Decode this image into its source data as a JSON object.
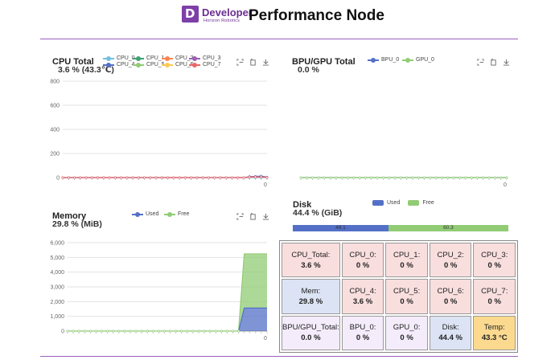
{
  "header": {
    "brand_main": "Developer",
    "brand_sub": "Horizon Robotics",
    "logo_letter": "D",
    "title": "Performance Node"
  },
  "colors": {
    "accent": "#7d3fa8",
    "rule": "#9b5fc0",
    "used": "#5470c6",
    "free": "#91cc75",
    "cpu_cell": "#f9dede",
    "mem_cell": "#dbe3f4",
    "bpu_cell": "#f4ecfa",
    "temp_cell": "#fbd98f"
  },
  "cpu_panel": {
    "title": "CPU Total",
    "value": "3.6 % (43.3℃)",
    "legend": [
      {
        "name": "CPU_0",
        "color": "#73c0de"
      },
      {
        "name": "CPU_1",
        "color": "#3ba272"
      },
      {
        "name": "CPU_2",
        "color": "#fc8452"
      },
      {
        "name": "CPU_3",
        "color": "#9a60b4"
      },
      {
        "name": "CPU_4",
        "color": "#5470c6"
      },
      {
        "name": "CPU_5",
        "color": "#91cc75"
      },
      {
        "name": "CPU_6",
        "color": "#fac858"
      },
      {
        "name": "CPU_7",
        "color": "#ee6666"
      }
    ],
    "tools": [
      "zoom-icon",
      "restore-icon",
      "download-icon"
    ]
  },
  "bpu_panel": {
    "title": "BPU/GPU Total",
    "value": "0.0 %",
    "legend": [
      {
        "name": "BPU_0",
        "color": "#5470c6"
      },
      {
        "name": "GPU_0",
        "color": "#91cc75"
      }
    ],
    "tools": [
      "zoom-icon",
      "restore-icon",
      "download-icon"
    ]
  },
  "mem_panel": {
    "title": "Memory",
    "value": "29.8 % (MiB)",
    "legend": [
      {
        "name": "Used",
        "color": "#5470c6"
      },
      {
        "name": "Free",
        "color": "#91cc75"
      }
    ],
    "tools": [
      "zoom-icon",
      "restore-icon",
      "download-icon"
    ]
  },
  "disk_panel": {
    "title": "Disk",
    "value": "44.4 % (GiB)",
    "legend": [
      {
        "name": "Used",
        "color": "#5470c6"
      },
      {
        "name": "Free",
        "color": "#91cc75"
      }
    ],
    "used": 48.1,
    "free": 60.3,
    "used_label": "48.1",
    "free_label": "60.3"
  },
  "chart_data": [
    {
      "type": "line",
      "name": "cpu",
      "ylim": [
        0,
        800
      ],
      "yticks": [
        "0",
        "200",
        "400",
        "600",
        "800"
      ],
      "xtick_last": "0",
      "points": 36,
      "series": [
        {
          "name": "CPU_0",
          "last_values": [
            0,
            0,
            0,
            0,
            0,
            0
          ]
        },
        {
          "name": "CPU_4",
          "last_values": [
            0,
            0,
            8,
            10,
            12,
            4
          ]
        },
        {
          "name": "CPU_7",
          "last_values": [
            0,
            0,
            4,
            6,
            4,
            2
          ]
        }
      ]
    },
    {
      "type": "line",
      "name": "bpu",
      "xtick_last": "0",
      "points": 36,
      "series": [
        {
          "name": "BPU_0",
          "value": 0
        },
        {
          "name": "GPU_0",
          "value": 0
        }
      ]
    },
    {
      "type": "area",
      "name": "memory",
      "ylim": [
        0,
        6000
      ],
      "yticks": [
        "0",
        "1,000",
        "2,000",
        "3,000",
        "4,000",
        "5,000",
        "6,000"
      ],
      "xtick_last": "0",
      "points": 36,
      "series": [
        {
          "name": "Used",
          "value": 1560
        },
        {
          "name": "Free",
          "value": 5240
        }
      ]
    }
  ],
  "cells": [
    {
      "label": "CPU_Total:",
      "value": "3.6 %",
      "kind": "cpu"
    },
    {
      "label": "CPU_0:",
      "value": "0 %",
      "kind": "cpu"
    },
    {
      "label": "CPU_1:",
      "value": "0 %",
      "kind": "cpu"
    },
    {
      "label": "CPU_2:",
      "value": "0 %",
      "kind": "cpu"
    },
    {
      "label": "CPU_3:",
      "value": "0 %",
      "kind": "cpu"
    },
    {
      "label": "Mem:",
      "value": "29.8 %",
      "kind": "mem"
    },
    {
      "label": "CPU_4:",
      "value": "3.6 %",
      "kind": "cpu"
    },
    {
      "label": "CPU_5:",
      "value": "0 %",
      "kind": "cpu"
    },
    {
      "label": "CPU_6:",
      "value": "0 %",
      "kind": "cpu"
    },
    {
      "label": "CPU_7:",
      "value": "0 %",
      "kind": "cpu"
    },
    {
      "label": "BPU/GPU_Total:",
      "value": "0.0 %",
      "kind": "bpu"
    },
    {
      "label": "BPU_0:",
      "value": "0 %",
      "kind": "bpu"
    },
    {
      "label": "GPU_0:",
      "value": "0 %",
      "kind": "bpu"
    },
    {
      "label": "Disk:",
      "value": "44.4 %",
      "kind": "disk"
    },
    {
      "label": "Temp:",
      "value": "43.3 °C",
      "kind": "temp"
    }
  ]
}
